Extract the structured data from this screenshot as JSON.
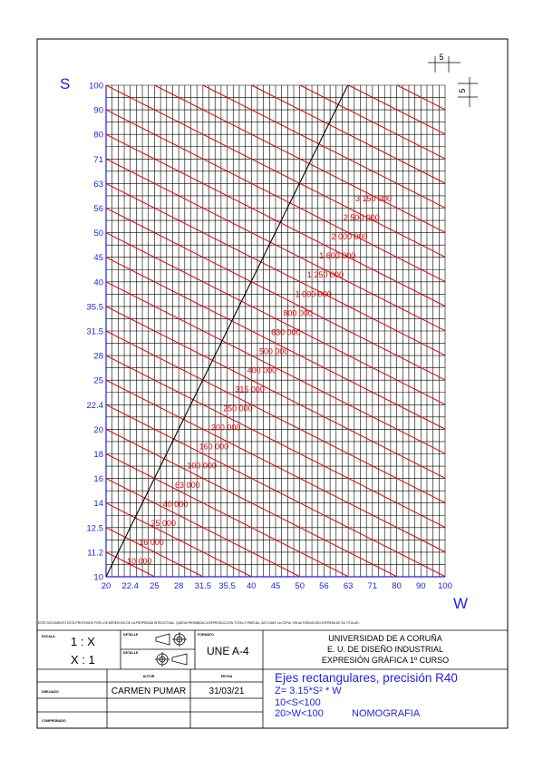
{
  "colors": {
    "axis": "#1f1fe6",
    "curves": "#e00000",
    "grid": "#000000",
    "line": "#000000"
  },
  "chart_data": {
    "type": "nomogram",
    "xlabel": "W",
    "ylabel": "S",
    "x_ticks": [
      "20",
      "22.4",
      "25",
      "28",
      "31.5",
      "35.5",
      "40",
      "45",
      "50",
      "56",
      "63",
      "71",
      "80",
      "90",
      "100"
    ],
    "y_ticks": [
      "10",
      "11.2",
      "12.5",
      "14",
      "16",
      "18",
      "20",
      "22.4",
      "25",
      "28",
      "31.5",
      "35.5",
      "40",
      "45",
      "50",
      "56",
      "63",
      "71",
      "80",
      "90",
      "100"
    ],
    "curve_labels": [
      "10 000",
      "16 000",
      "25 000",
      "40 000",
      "63 000",
      "100 000",
      "160 000",
      "200 000",
      "250 000",
      "315 000",
      "400 000",
      "500 000",
      "630 000",
      "800 000",
      "1 000 000",
      "1 250 000",
      "1 600 000",
      "2 000 000",
      "2 500 000",
      "3 150 000"
    ],
    "reference_line": "S = W"
  },
  "dimension": {
    "h": "5",
    "v": "5"
  },
  "notice": "ESTE DOCUMENTO ESTÁ PROTEGIDO POR LOS DERECHOS DE LA PROPIEDAD INTELECTUAL. QUEDA PROHIBIDA LA REPRODUCCIÓN TOTAL O PARCIAL, ASÍ COMO LA COPIA, SIN AUTORIZACIÓN EXPRESA DE SU TITULAR.",
  "title_block": {
    "escala_label": "ESCALA",
    "escala_1": "1 : X",
    "escala_2": "X : 1",
    "detalle_label_1": "DETALLE",
    "detalle_label_2": "DETALLE",
    "formato_label": "FORMATO",
    "formato": "UNE A-4",
    "university": "UNIVERSIDAD DE A CORUÑA",
    "school": "E. U. DE DISEÑO INDUSTRIAL",
    "course": "EXPRESIÓN GRÁFICA 1º CURSO",
    "autor_label": "AUTOR",
    "fecha_label": "FECHA",
    "dibujado_label": "DIBUJADO",
    "comprobado_label": "COMPROBADO",
    "autor": "CARMEN PUMAR",
    "fecha": "31/03/21",
    "title_1": "Ejes rectangulares, precisión R40",
    "title_2": "Z= 3.15*S² * W",
    "title_3": "10<S<100",
    "title_4": "20>W<100",
    "title_5": "NOMOGRAFIA"
  }
}
